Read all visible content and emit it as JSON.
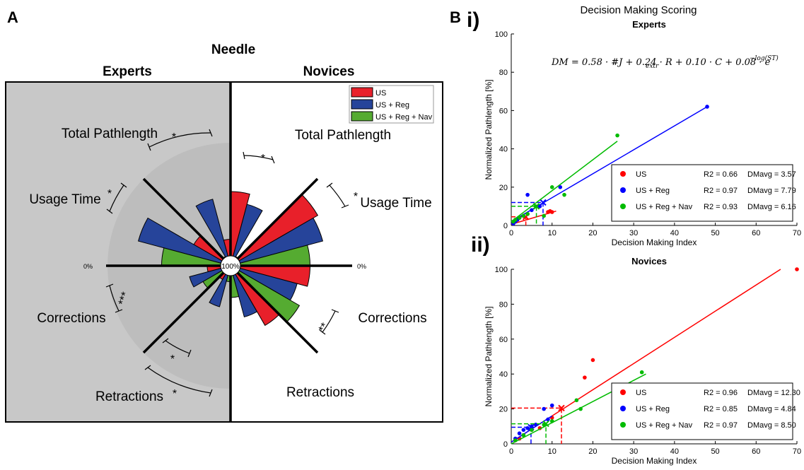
{
  "panel_a": {
    "label": "A",
    "title": "Needle",
    "left_group": "Experts",
    "right_group": "Novices",
    "center_label": "100%",
    "zero_left": "0%",
    "zero_right": "0%",
    "metrics": [
      "Total Pathlength",
      "Usage Time",
      "Corrections",
      "Retractions"
    ],
    "legend": [
      {
        "name": "US",
        "color": "#e8202a"
      },
      {
        "name": "US + Reg",
        "color": "#26449a"
      },
      {
        "name": "US + Reg + Nav",
        "color": "#55ab31"
      }
    ],
    "colors": {
      "experts_bg": "#c8c8c8",
      "disc": "#bdbdbd"
    }
  },
  "panel_b": {
    "label": "B",
    "super_title": "Decision Making Scoring",
    "equation": "DM = 0.58 · #J  + 0.24 · R + 0.10 · C + 0.08 · e",
    "equation_sub": "extr",
    "equation_sup": "−log(ST)"
  },
  "chart_data": [
    {
      "type": "polar-bar",
      "title": "Needle",
      "groups": [
        "Experts",
        "Novices"
      ],
      "metrics": [
        "Total Pathlength",
        "Usage Time",
        "Corrections",
        "Retractions"
      ],
      "series": [
        {
          "name": "US",
          "color": "#e8202a",
          "experts": [
            25,
            40,
            22,
            15
          ],
          "novices": [
            70,
            95,
            75,
            65
          ]
        },
        {
          "name": "US + Reg",
          "color": "#26449a",
          "experts": [
            65,
            90,
            40,
            40
          ],
          "novices": [
            60,
            90,
            65,
            50
          ]
        },
        {
          "name": "US + Reg + Nav",
          "color": "#55ab31",
          "experts": [
            10,
            65,
            30,
            15
          ],
          "novices": [
            10,
            75,
            75,
            30
          ]
        }
      ],
      "significance": [
        {
          "group": "Experts",
          "metric": "Total Pathlength",
          "label": "*"
        },
        {
          "group": "Experts",
          "metric": "Usage Time",
          "label": "*"
        },
        {
          "group": "Experts",
          "metric": "Corrections",
          "label": "***"
        },
        {
          "group": "Experts",
          "metric": "Retractions",
          "label": "*"
        },
        {
          "group": "Experts",
          "metric": "Retractions",
          "label": "*"
        },
        {
          "group": "Novices",
          "metric": "Total Pathlength",
          "label": "*"
        },
        {
          "group": "Novices",
          "metric": "Usage Time",
          "label": "*"
        },
        {
          "group": "Novices",
          "metric": "Corrections",
          "label": "**"
        }
      ]
    },
    {
      "type": "scatter",
      "panel": "i)",
      "title": "Experts",
      "xlabel": "Decision Making Index",
      "ylabel": "Normalized Pathlength [%]",
      "xlim": [
        0,
        70
      ],
      "ylim": [
        0,
        100
      ],
      "xticks": [
        0,
        10,
        20,
        30,
        40,
        50,
        60,
        70
      ],
      "yticks": [
        0,
        20,
        40,
        60,
        80,
        100
      ],
      "legend": "bottom-right",
      "series": [
        {
          "name": "US",
          "color": "#ff0000",
          "r2": "R2 = 0.66",
          "dm": "DMavg = 3.57",
          "points": [
            [
              0.5,
              1
            ],
            [
              1,
              2
            ],
            [
              1.5,
              3
            ],
            [
              2,
              4
            ],
            [
              3,
              5
            ],
            [
              4,
              6
            ],
            [
              9,
              7
            ],
            [
              10,
              7
            ],
            [
              9.5,
              7.5
            ]
          ],
          "fit": [
            [
              0,
              0.6
            ],
            [
              11,
              7.5
            ]
          ],
          "mean": [
            3.57,
            4.5
          ]
        },
        {
          "name": "US + Reg",
          "color": "#0000ff",
          "r2": "R2 = 0.97",
          "dm": "DMavg = 7.79",
          "points": [
            [
              0.5,
              1
            ],
            [
              1,
              2
            ],
            [
              1.5,
              3
            ],
            [
              2,
              4
            ],
            [
              3,
              5
            ],
            [
              4,
              16
            ],
            [
              5,
              8
            ],
            [
              7,
              10
            ],
            [
              12,
              20
            ],
            [
              48,
              62
            ]
          ],
          "fit": [
            [
              0,
              2
            ],
            [
              48,
              62
            ]
          ],
          "mean": [
            7.79,
            12
          ]
        },
        {
          "name": "US + Reg + Nav",
          "color": "#00bb00",
          "r2": "R2 = 0.93",
          "dm": "DMavg = 6.16",
          "points": [
            [
              0.5,
              2
            ],
            [
              1,
              3
            ],
            [
              2,
              4
            ],
            [
              3,
              5
            ],
            [
              4,
              6
            ],
            [
              6,
              10
            ],
            [
              8,
              5
            ],
            [
              10,
              20
            ],
            [
              13,
              16
            ],
            [
              26,
              47
            ]
          ],
          "fit": [
            [
              0,
              2
            ],
            [
              26,
              44
            ]
          ],
          "mean": [
            6.16,
            10
          ]
        }
      ]
    },
    {
      "type": "scatter",
      "panel": "ii)",
      "title": "Novices",
      "xlabel": "Decision Making Index",
      "ylabel": "Normalized Pathlength [%]",
      "xlim": [
        0,
        70
      ],
      "ylim": [
        0,
        100
      ],
      "xticks": [
        0,
        10,
        20,
        30,
        40,
        50,
        60,
        70
      ],
      "yticks": [
        0,
        20,
        40,
        60,
        80,
        100
      ],
      "legend": "bottom-right",
      "series": [
        {
          "name": "US",
          "color": "#ff0000",
          "r2": "R2 = 0.96",
          "dm": "DMavg = 12.30",
          "points": [
            [
              1,
              2
            ],
            [
              2,
              3
            ],
            [
              3,
              5
            ],
            [
              5,
              8
            ],
            [
              7,
              9
            ],
            [
              10,
              15
            ],
            [
              18,
              38
            ],
            [
              20,
              48
            ],
            [
              70,
              100
            ]
          ],
          "fit": [
            [
              0,
              1
            ],
            [
              66,
              100
            ]
          ],
          "mean": [
            12.3,
            20.5
          ]
        },
        {
          "name": "US + Reg",
          "color": "#0000ff",
          "r2": "R2 = 0.85",
          "dm": "DMavg = 4.84",
          "points": [
            [
              1,
              3
            ],
            [
              2,
              6
            ],
            [
              3,
              8
            ],
            [
              4,
              9
            ],
            [
              5,
              10
            ],
            [
              6,
              11
            ],
            [
              8,
              20
            ],
            [
              10,
              22
            ],
            [
              9,
              14
            ]
          ],
          "fit": [
            [
              0,
              1
            ],
            [
              10,
              16
            ]
          ],
          "mean": [
            4.84,
            9.5
          ]
        },
        {
          "name": "US + Reg + Nav",
          "color": "#00bb00",
          "r2": "R2 = 0.97",
          "dm": "DMavg = 8.50",
          "points": [
            [
              1,
              2
            ],
            [
              3,
              5
            ],
            [
              5,
              8
            ],
            [
              8,
              11
            ],
            [
              10,
              13
            ],
            [
              16,
              25
            ],
            [
              17,
              20
            ],
            [
              32,
              41
            ]
          ],
          "fit": [
            [
              0,
              0
            ],
            [
              33,
              40
            ]
          ],
          "mean": [
            8.5,
            11.5
          ]
        }
      ]
    }
  ]
}
